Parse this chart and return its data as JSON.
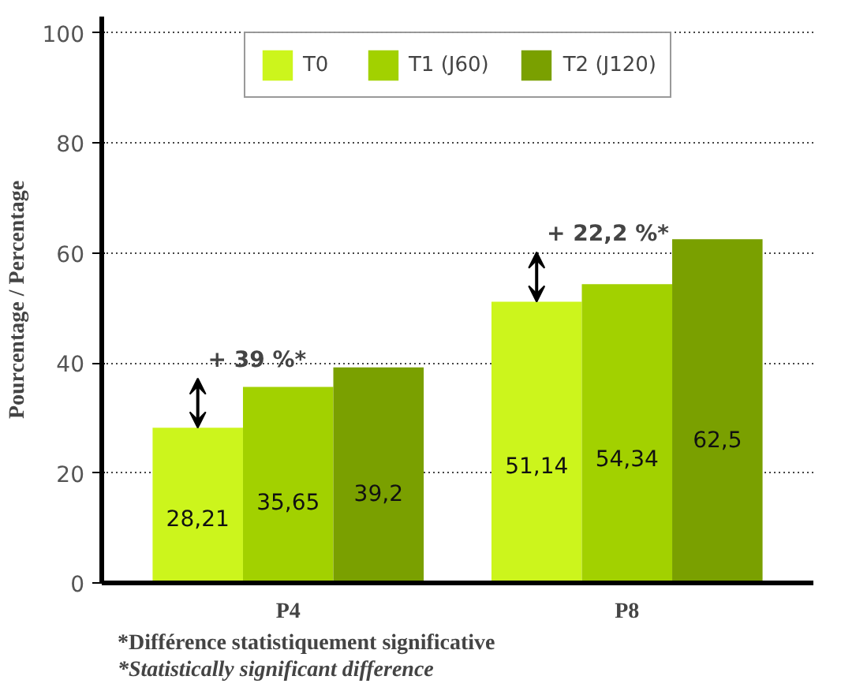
{
  "chart_data": {
    "type": "bar",
    "ylabel": "Pourcentage / Percentage",
    "categories": [
      "P4",
      "P8"
    ],
    "series": [
      {
        "name": "T0",
        "color": "#ccf51c",
        "values": [
          28.21,
          51.14
        ]
      },
      {
        "name": "T1 (J60)",
        "color": "#a2d100",
        "values": [
          35.65,
          54.34
        ]
      },
      {
        "name": "T2 (J120)",
        "color": "#7aa000",
        "values": [
          39.2,
          62.5
        ]
      }
    ],
    "value_labels": [
      [
        "28,21",
        "51,14"
      ],
      [
        "35,65",
        "54,34"
      ],
      [
        "39,2",
        "62,5"
      ]
    ],
    "ylim": [
      0,
      100
    ],
    "yticks": [
      0,
      20,
      40,
      60,
      80,
      100
    ],
    "grid": "y",
    "legend": "top",
    "annotations": [
      "+ 39 %*",
      "+ 22,2 %*",
      "*Différence statistiquement significative",
      "*Statistically significant difference"
    ]
  }
}
